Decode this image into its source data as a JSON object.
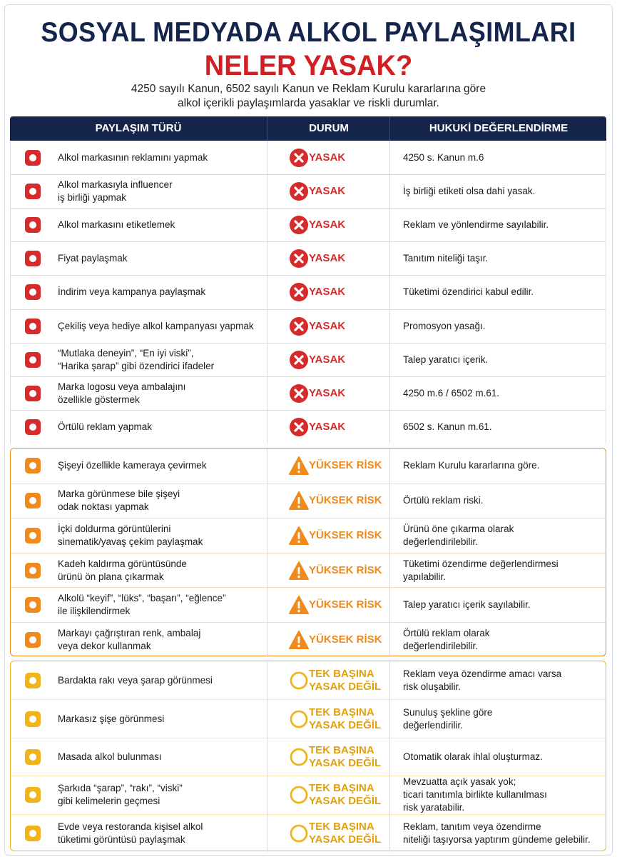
{
  "header": {
    "title": "SOSYAL MEDYADA ALKOL PAYLAŞIMLARI",
    "subtitle": "NELER YASAK?",
    "description": [
      "4250 sayılı Kanun, 6502 sayılı Kanun ve Reklam Kurulu kararlarına göre",
      "alkol içerikli paylaşımlarda yasaklar ve riskli durumlar."
    ]
  },
  "table": {
    "columns": [
      "PAYLAŞIM TÜRÜ",
      "DURUM",
      "HUKUKİ DEĞERLENDİRME"
    ],
    "sections": [
      {
        "color": "#d62b2b",
        "rows": [
          {
            "text": [
              "Alkol markasının reklamını yapmak"
            ],
            "status": [
              "YASAK"
            ],
            "note": [
              "4250 s. Kanun m.6"
            ]
          },
          {
            "text": [
              "Alkol markasıyla influencer",
              "iş birliği yapmak"
            ],
            "status": [
              "YASAK"
            ],
            "note": [
              "İş birliği etiketi olsa dahi yasak."
            ]
          },
          {
            "text": [
              "Alkol markasını etiketlemek"
            ],
            "status": [
              "YASAK"
            ],
            "note": [
              "Reklam ve yönlendirme sayılabilir."
            ]
          },
          {
            "text": [
              "Fiyat paylaşmak"
            ],
            "status": [
              "YASAK"
            ],
            "note": [
              "Tanıtım niteliği taşır."
            ]
          },
          {
            "text": [
              "İndirim veya kampanya paylaşmak"
            ],
            "status": [
              "YASAK"
            ],
            "note": [
              "Tüketimi özendirici kabul edilir."
            ]
          },
          {
            "text": [
              "Çekiliş veya hediye alkol kampanyası yapmak"
            ],
            "status": [
              "YASAK"
            ],
            "note": [
              "Promosyon yasağı."
            ]
          },
          {
            "text": [
              "“Mutlaka deneyin”, “En iyi viski”,",
              "“Harika şarap” gibi özendirici ifadeler"
            ],
            "status": [
              "YASAK"
            ],
            "note": [
              "Talep yaratıcı içerik."
            ]
          },
          {
            "text": [
              "Marka logosu veya ambalajını",
              "özellikle göstermek"
            ],
            "status": [
              "YASAK"
            ],
            "note": [
              "4250 m.6 / 6502 m.61."
            ]
          },
          {
            "text": [
              "Örtülü reklam yapmak"
            ],
            "status": [
              "YASAK"
            ],
            "note": [
              "6502 s. Kanun m.61."
            ]
          }
        ]
      },
      {
        "color": "#f08a1c",
        "rows": [
          {
            "text": [
              "Şişeyi özellikle kameraya çevirmek"
            ],
            "status": [
              "YÜKSEK RİSK"
            ],
            "note": [
              "Reklam Kurulu kararlarına göre."
            ]
          },
          {
            "text": [
              "Marka görünmese bile şişeyi",
              "odak noktası yapmak"
            ],
            "status": [
              "YÜKSEK RİSK"
            ],
            "note": [
              "Örtülü reklam riski."
            ]
          },
          {
            "text": [
              "İçki doldurma görüntülerini",
              "sinematik/yavaş çekim paylaşmak"
            ],
            "status": [
              "YÜKSEK RİSK"
            ],
            "note": [
              "Ürünü öne çıkarma olarak",
              "değerlendirilebilir."
            ]
          },
          {
            "text": [
              "Kadeh kaldırma görüntüsünde",
              "ürünü ön plana çıkarmak"
            ],
            "status": [
              "YÜKSEK RİSK"
            ],
            "note": [
              "Tüketimi özendirme değerlendirmesi",
              "yapılabilir."
            ]
          },
          {
            "text": [
              "Alkolü “keyif”, “lüks”, “başarı”, “eğlence”",
              "ile ilişkilendirmek"
            ],
            "status": [
              "YÜKSEK RİSK"
            ],
            "note": [
              "Talep yaratıcı içerik sayılabilir."
            ]
          },
          {
            "text": [
              "Markayı çağrıştıran renk, ambalaj",
              "veya dekor kullanmak"
            ],
            "status": [
              "YÜKSEK RİSK"
            ],
            "note": [
              "Örtülü reklam olarak",
              "değerlendirilebilir."
            ]
          }
        ]
      },
      {
        "color": "#f0b41c",
        "rows": [
          {
            "text": [
              "Bardakta rakı veya şarap görünmesi"
            ],
            "status": [
              "TEK BAŞINA",
              "YASAK DEĞİL"
            ],
            "note": [
              "Reklam veya özendirme amacı varsa",
              "risk oluşabilir."
            ]
          },
          {
            "text": [
              "Markasız şişe görünmesi"
            ],
            "status": [
              "TEK BAŞINA",
              "YASAK DEĞİL"
            ],
            "note": [
              "Sunuluş şekline göre",
              "değerlendirilir."
            ]
          },
          {
            "text": [
              "Masada alkol bulunması"
            ],
            "status": [
              "TEK BAŞINA",
              "YASAK DEĞİL"
            ],
            "note": [
              "Otomatik olarak ihlal oluşturmaz."
            ]
          },
          {
            "text": [
              "Şarkıda “şarap”, “rakı”, “viski”",
              "gibi kelimelerin geçmesi"
            ],
            "status": [
              "TEK BAŞINA",
              "YASAK DEĞİL"
            ],
            "note": [
              "Mevzuatta açık yasak yok;",
              "ticari tanıtımla birlikte kullanılması",
              "risk yaratabilir."
            ]
          },
          {
            "text": [
              "Evde veya restoranda kişisel alkol",
              "tüketimi görüntüsü paylaşmak"
            ],
            "status": [
              "TEK BAŞINA",
              "YASAK DEĞİL"
            ],
            "note": [
              "Reklam, tanıtım veya özendirme",
              "niteliği taşıyorsa yaptırım gündeme gelebilir."
            ]
          }
        ]
      }
    ]
  }
}
